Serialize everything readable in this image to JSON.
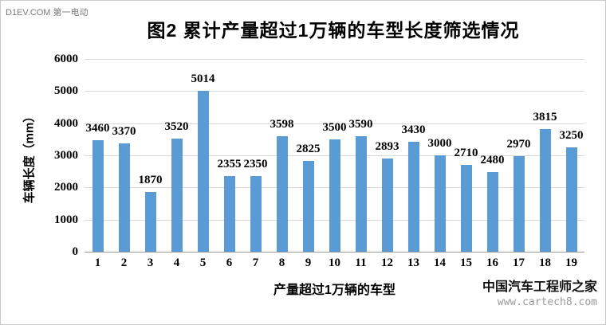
{
  "watermarks": {
    "top_left": "D1EV.COM 第一电动",
    "bottom_right_line1": "中国汽车工程师之家",
    "bottom_right_line2": "www.cartech8.com"
  },
  "chart_data": {
    "type": "bar",
    "title": "图2  累计产量超过1万辆的车型长度筛选情况",
    "xlabel": "产量超过1万辆的车型",
    "ylabel": "车辆长度（mm）",
    "categories": [
      "1",
      "2",
      "3",
      "4",
      "5",
      "6",
      "7",
      "8",
      "9",
      "10",
      "11",
      "12",
      "13",
      "14",
      "15",
      "16",
      "17",
      "18",
      "19"
    ],
    "values": [
      3460,
      3370,
      1870,
      3520,
      5014,
      2355,
      2350,
      3598,
      2825,
      3500,
      3590,
      2893,
      3430,
      3000,
      2710,
      2480,
      2970,
      3815,
      3250
    ],
    "ylim": [
      0,
      6000
    ],
    "yticks": [
      0,
      1000,
      2000,
      3000,
      4000,
      5000,
      6000
    ],
    "grid": true,
    "legend": false,
    "bar_color": "#5b9bd5"
  },
  "colors": {
    "bar": "#5b9bd5",
    "gridline": "#d8d8d8",
    "axis_line": "#9a9a9a",
    "watermark_gray": "#7a7a7a"
  }
}
